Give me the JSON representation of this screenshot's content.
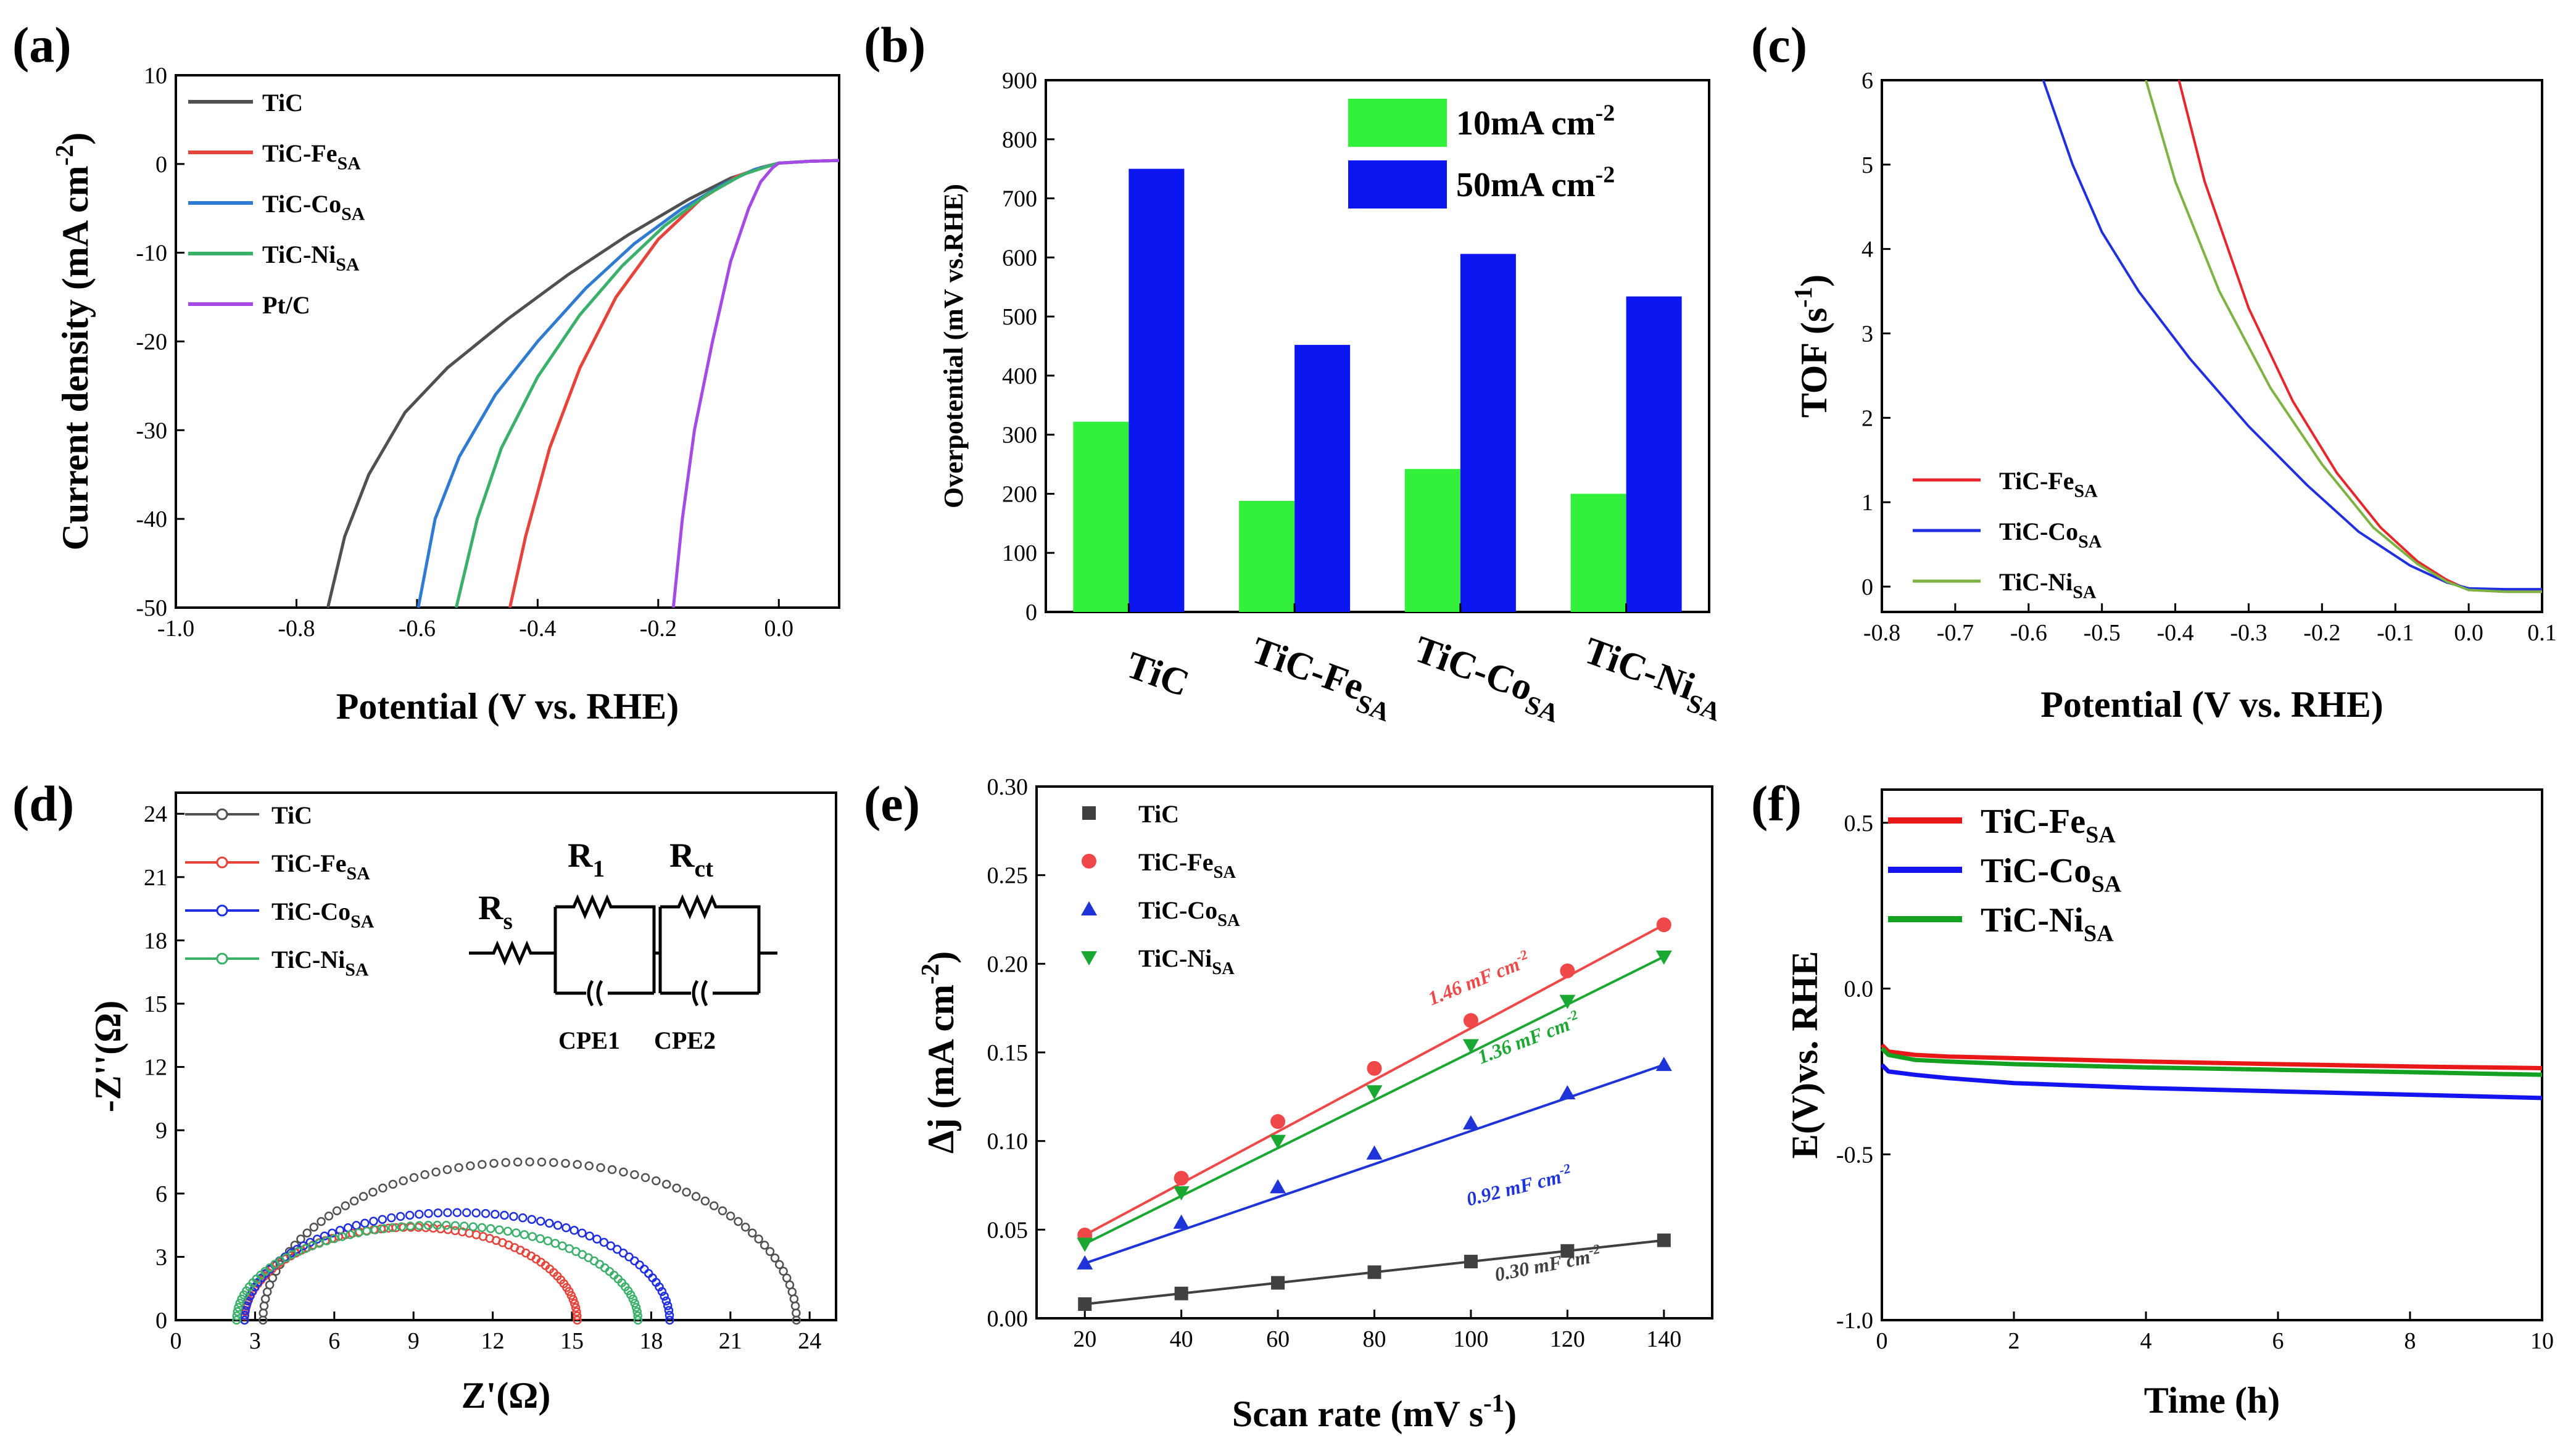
{
  "figure": {
    "panel_labels": [
      "(a)",
      "(b)",
      "(c)",
      "(d)",
      "(e)",
      "(f)"
    ]
  },
  "chart_data": [
    {
      "panel": "(a)",
      "type": "line",
      "title": "",
      "xlabel": "Potential (V vs. RHE)",
      "ylabel": "Current density (mA cm-2)",
      "ylabel_main": "Current density (mA cm",
      "ylabel_sup": "-2",
      "ylabel_end": ")",
      "xlim": [
        -1.0,
        0.1
      ],
      "ylim": [
        -50,
        10
      ],
      "xticks": [
        -1.0,
        -0.8,
        -0.6,
        -0.4,
        -0.2,
        0.0
      ],
      "xtick_labels": [
        "-1.0",
        "-0.8",
        "-0.6",
        "-0.4",
        "-0.2",
        "0.0"
      ],
      "yticks": [
        10,
        0,
        -10,
        -20,
        -30,
        -40,
        -50
      ],
      "ytick_labels": [
        "10",
        "0",
        "-10",
        "-20",
        "-30",
        "-40",
        "-50"
      ],
      "legend_loc": "top-left",
      "series": [
        {
          "name": "TiC",
          "base": "TiC",
          "sub": "",
          "color": "#505050",
          "x": [
            -0.748,
            -0.72,
            -0.68,
            -0.62,
            -0.55,
            -0.45,
            -0.35,
            -0.25,
            -0.15,
            -0.08,
            -0.03,
            0.0,
            0.05,
            0.1
          ],
          "y": [
            -50,
            -42,
            -35,
            -28,
            -23,
            -17.5,
            -12.5,
            -8,
            -4,
            -1.6,
            -0.5,
            0.1,
            0.3,
            0.4
          ]
        },
        {
          "name": "TiC-FeSA",
          "base": "TiC-Fe",
          "sub": "SA",
          "color": "#e8433a",
          "x": [
            -0.446,
            -0.42,
            -0.38,
            -0.33,
            -0.27,
            -0.2,
            -0.13,
            -0.07,
            -0.03,
            0.0,
            0.05,
            0.1
          ],
          "y": [
            -50,
            -42,
            -32,
            -23,
            -15,
            -8.5,
            -4,
            -1.4,
            -0.4,
            0.1,
            0.3,
            0.4
          ]
        },
        {
          "name": "TiC-CoSA",
          "base": "TiC-Co",
          "sub": "SA",
          "color": "#2e7bd1",
          "x": [
            -0.598,
            -0.57,
            -0.53,
            -0.47,
            -0.4,
            -0.32,
            -0.24,
            -0.16,
            -0.09,
            -0.04,
            0.0,
            0.05,
            0.1
          ],
          "y": [
            -50,
            -40,
            -33,
            -26,
            -20,
            -14,
            -9,
            -5,
            -2.2,
            -0.6,
            0.1,
            0.3,
            0.4
          ]
        },
        {
          "name": "TiC-NiSA",
          "base": "TiC-Ni",
          "sub": "SA",
          "color": "#3bb06a",
          "x": [
            -0.535,
            -0.5,
            -0.46,
            -0.4,
            -0.33,
            -0.26,
            -0.19,
            -0.12,
            -0.06,
            -0.02,
            0.0,
            0.05,
            0.1
          ],
          "y": [
            -50,
            -40,
            -32,
            -24,
            -17,
            -11.5,
            -7,
            -3.5,
            -1.2,
            -0.3,
            0.1,
            0.3,
            0.4
          ]
        },
        {
          "name": "Pt/C",
          "base": "Pt/C",
          "sub": "",
          "color": "#a64ae6",
          "x": [
            -0.175,
            -0.16,
            -0.14,
            -0.11,
            -0.08,
            -0.05,
            -0.03,
            -0.01,
            0.0,
            0.05,
            0.1
          ],
          "y": [
            -50,
            -40,
            -30,
            -20,
            -11,
            -5,
            -2,
            -0.4,
            0.1,
            0.3,
            0.4
          ]
        }
      ]
    },
    {
      "panel": "(b)",
      "type": "bar",
      "xlabel": "",
      "ylabel": "Overpotential (mV vs.RHE)",
      "ylim": [
        0,
        900
      ],
      "yticks": [
        0,
        100,
        200,
        300,
        400,
        500,
        600,
        700,
        800,
        900
      ],
      "ytick_labels": [
        "0",
        "100",
        "200",
        "300",
        "400",
        "500",
        "600",
        "700",
        "800",
        "900"
      ],
      "categories": [
        "TiC",
        "TiC-FeSA",
        "TiC-CoSA",
        "TiC-NiSA"
      ],
      "category_base": [
        "TiC",
        "TiC-Fe",
        "TiC-Co",
        "TiC-Ni"
      ],
      "category_sub": [
        "",
        "SA",
        "SA",
        "SA"
      ],
      "legend_loc": "top-right",
      "series": [
        {
          "name": "10mA cm-2",
          "base": "10mA cm",
          "sup": "-2",
          "color": "#33f03a",
          "values": [
            322,
            188,
            242,
            200
          ]
        },
        {
          "name": "50mA cm-2",
          "base": "50mA cm",
          "sup": "-2",
          "color": "#0c16f0",
          "values": [
            750,
            452,
            606,
            534
          ]
        }
      ]
    },
    {
      "panel": "(c)",
      "type": "line",
      "xlabel": "Potential (V vs. RHE)",
      "ylabel": "TOF (s-1)",
      "ylabel_main": "TOF (s",
      "ylabel_sup": "-1",
      "ylabel_end": ")",
      "xlim": [
        -0.8,
        0.1
      ],
      "ylim": [
        -0.3,
        6
      ],
      "xticks": [
        -0.8,
        -0.7,
        -0.6,
        -0.5,
        -0.4,
        -0.3,
        -0.2,
        -0.1,
        0.0,
        0.1
      ],
      "xtick_labels": [
        "-0.8",
        "-0.7",
        "-0.6",
        "-0.5",
        "-0.4",
        "-0.3",
        "-0.2",
        "-0.1",
        "0.0",
        "0.1"
      ],
      "yticks": [
        0,
        1,
        2,
        3,
        4,
        5,
        6
      ],
      "ytick_labels": [
        "0",
        "1",
        "2",
        "3",
        "4",
        "5",
        "6"
      ],
      "legend_loc": "bottom-left",
      "series": [
        {
          "name": "TiC-FeSA",
          "base": "TiC-Fe",
          "sub": "SA",
          "color": "#e8252a",
          "x": [
            -0.395,
            -0.36,
            -0.3,
            -0.24,
            -0.18,
            -0.12,
            -0.07,
            -0.03,
            0.0,
            0.05,
            0.1
          ],
          "y": [
            6,
            4.8,
            3.3,
            2.2,
            1.35,
            0.7,
            0.3,
            0.08,
            -0.04,
            -0.06,
            -0.06
          ]
        },
        {
          "name": "TiC-CoSA",
          "base": "TiC-Co",
          "sub": "SA",
          "color": "#2030e0",
          "x": [
            -0.58,
            -0.54,
            -0.5,
            -0.45,
            -0.38,
            -0.3,
            -0.22,
            -0.15,
            -0.08,
            -0.03,
            0.0,
            0.05,
            0.1
          ],
          "y": [
            6,
            5.0,
            4.2,
            3.5,
            2.7,
            1.9,
            1.2,
            0.65,
            0.25,
            0.05,
            -0.02,
            -0.03,
            -0.03
          ]
        },
        {
          "name": "TiC-NiSA",
          "base": "TiC-Ni",
          "sub": "SA",
          "color": "#7cb342",
          "x": [
            -0.44,
            -0.4,
            -0.34,
            -0.27,
            -0.2,
            -0.13,
            -0.07,
            -0.03,
            0.0,
            0.05,
            0.1
          ],
          "y": [
            6,
            4.8,
            3.5,
            2.35,
            1.45,
            0.7,
            0.27,
            0.06,
            -0.04,
            -0.06,
            -0.06
          ]
        }
      ]
    },
    {
      "panel": "(d)",
      "type": "scatter",
      "xlabel": "Z'(Ω)",
      "ylabel": "-Z''(Ω)",
      "xlim": [
        0,
        25
      ],
      "ylim": [
        0,
        25
      ],
      "xticks": [
        0,
        3,
        6,
        9,
        12,
        15,
        18,
        21,
        24
      ],
      "xtick_labels": [
        "0",
        "3",
        "6",
        "9",
        "12",
        "15",
        "18",
        "21",
        "24"
      ],
      "yticks": [
        0,
        3,
        6,
        9,
        12,
        15,
        18,
        21,
        24
      ],
      "ytick_labels": [
        "0",
        "3",
        "6",
        "9",
        "12",
        "15",
        "18",
        "21",
        "24"
      ],
      "legend_loc": "top-left",
      "series": [
        {
          "name": "TiC",
          "base": "TiC",
          "sub": "",
          "color": "#505050",
          "r_start": 3.3,
          "r_end": 23.5,
          "peak": 7.5
        },
        {
          "name": "TiC-FeSA",
          "base": "TiC-Fe",
          "sub": "SA",
          "color": "#e8433a",
          "r_start": 2.6,
          "r_end": 15.2,
          "peak": 4.4
        },
        {
          "name": "TiC-CoSA",
          "base": "TiC-Co",
          "sub": "SA",
          "color": "#1e2ee0",
          "r_start": 2.6,
          "r_end": 18.7,
          "peak": 5.1
        },
        {
          "name": "TiC-NiSA",
          "base": "TiC-Ni",
          "sub": "SA",
          "color": "#3bb06a",
          "r_start": 2.3,
          "r_end": 17.5,
          "peak": 4.5
        }
      ],
      "circuit_labels": {
        "rs": "R",
        "rs_sub": "s",
        "r1": "R",
        "r1_sub": "1",
        "rct": "R",
        "rct_sub": "ct",
        "cpe1": "CPE1",
        "cpe2": "CPE2"
      }
    },
    {
      "panel": "(e)",
      "type": "scatter",
      "xlabel": "Scan rate (mV s-1)",
      "xlabel_main": "Scan rate (mV s",
      "xlabel_sup": "-1",
      "xlabel_end": ")",
      "ylabel": "Δj (mA cm-2)",
      "ylabel_main": "Δj (mA cm",
      "ylabel_sup": "-2",
      "ylabel_end": ")",
      "xlim": [
        10,
        150
      ],
      "ylim": [
        0,
        0.3
      ],
      "xticks": [
        20,
        40,
        60,
        80,
        100,
        120,
        140
      ],
      "xtick_labels": [
        "20",
        "40",
        "60",
        "80",
        "100",
        "120",
        "140"
      ],
      "yticks": [
        0,
        0.05,
        0.1,
        0.15,
        0.2,
        0.25,
        0.3
      ],
      "ytick_labels": [
        "0.00",
        "0.05",
        "0.10",
        "0.15",
        "0.20",
        "0.25",
        "0.30"
      ],
      "legend_loc": "top-left",
      "x": [
        20,
        40,
        60,
        80,
        100,
        120,
        140
      ],
      "series": [
        {
          "name": "TiC",
          "base": "TiC",
          "sub": "",
          "color": "#404040",
          "marker": "square",
          "values": [
            0.008,
            0.014,
            0.02,
            0.026,
            0.032,
            0.038,
            0.044
          ],
          "annotation": "0.30 mF cm-2"
        },
        {
          "name": "TiC-FeSA",
          "base": "TiC-Fe",
          "sub": "SA",
          "color": "#f04848",
          "marker": "circle",
          "values": [
            0.047,
            0.079,
            0.111,
            0.141,
            0.168,
            0.196,
            0.222
          ],
          "annotation": "1.46 mF cm-2"
        },
        {
          "name": "TiC-CoSA",
          "base": "TiC-Co",
          "sub": "SA",
          "color": "#1e34d8",
          "marker": "triangle-up",
          "values": [
            0.031,
            0.054,
            0.074,
            0.093,
            0.11,
            0.127,
            0.143
          ],
          "annotation": "0.92 mF cm-2"
        },
        {
          "name": "TiC-NiSA",
          "base": "TiC-Ni",
          "sub": "SA",
          "color": "#1aa832",
          "marker": "triangle-down",
          "values": [
            0.042,
            0.071,
            0.1,
            0.128,
            0.154,
            0.179,
            0.204
          ],
          "annotation": "1.36 mF cm-2"
        }
      ]
    },
    {
      "panel": "(f)",
      "type": "line",
      "xlabel": "Time (h)",
      "ylabel": "E(V)vs. RHE",
      "xlim": [
        0,
        10
      ],
      "ylim": [
        -1.0,
        0.6
      ],
      "xticks": [
        0,
        2,
        4,
        6,
        8,
        10
      ],
      "xtick_labels": [
        "0",
        "2",
        "4",
        "6",
        "8",
        "10"
      ],
      "yticks": [
        0.5,
        0.0,
        -0.5,
        -1.0
      ],
      "ytick_labels": [
        "0.5",
        "0.0",
        "-0.5",
        "-1.0"
      ],
      "legend_loc": "top-left",
      "series": [
        {
          "name": "TiC-FeSA",
          "base": "TiC-Fe",
          "sub": "SA",
          "color": "#e81818",
          "x": [
            0,
            0.1,
            0.5,
            1,
            2,
            4,
            6,
            8,
            10
          ],
          "y": [
            -0.17,
            -0.19,
            -0.2,
            -0.205,
            -0.21,
            -0.22,
            -0.228,
            -0.235,
            -0.24
          ]
        },
        {
          "name": "TiC-CoSA",
          "base": "TiC-Co",
          "sub": "SA",
          "color": "#1414f0",
          "x": [
            0,
            0.1,
            0.5,
            1,
            2,
            4,
            6,
            8,
            10
          ],
          "y": [
            -0.23,
            -0.25,
            -0.26,
            -0.27,
            -0.285,
            -0.3,
            -0.31,
            -0.32,
            -0.33
          ]
        },
        {
          "name": "TiC-NiSA",
          "base": "TiC-Ni",
          "sub": "SA",
          "color": "#14a020",
          "x": [
            0,
            0.1,
            0.5,
            1,
            2,
            4,
            6,
            8,
            10
          ],
          "y": [
            -0.18,
            -0.2,
            -0.215,
            -0.22,
            -0.228,
            -0.238,
            -0.245,
            -0.252,
            -0.26
          ]
        }
      ]
    }
  ]
}
